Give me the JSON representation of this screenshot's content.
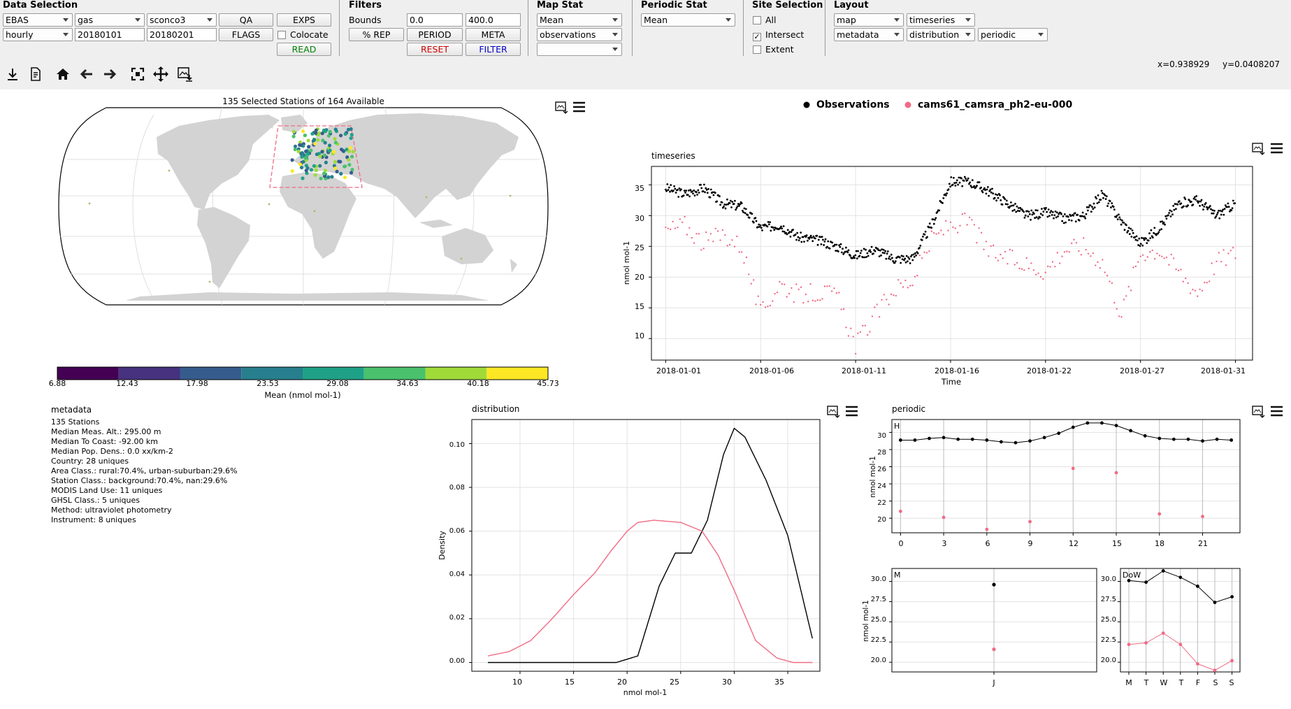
{
  "toolbar": {
    "data_selection": {
      "title": "Data Selection",
      "network": "EBAS",
      "species_group": "gas",
      "species": "sconco3",
      "resolution": "hourly",
      "start_date": "20180101",
      "end_date": "20180201",
      "qa_label": "QA",
      "flags_label": "FLAGS",
      "exps_label": "EXPS",
      "colocate_label": "Colocate",
      "colocate_checked": false,
      "read_label": "READ",
      "read_color": "#008000"
    },
    "filters": {
      "title": "Filters",
      "bounds_label": "Bounds",
      "bounds_min": "0.0",
      "bounds_max": "400.0",
      "rep_label": "% REP",
      "period_label": "PERIOD",
      "meta_label": "META",
      "reset_label": "RESET",
      "reset_color": "#d00000",
      "filter_label": "FILTER",
      "filter_color": "#0000c8"
    },
    "map_stat": {
      "title": "Map Stat",
      "stat": "Mean",
      "dataset": "observations",
      "extra": ""
    },
    "periodic_stat": {
      "title": "Periodic Stat",
      "stat": "Mean"
    },
    "site_selection": {
      "title": "Site Selection",
      "all_label": "All",
      "all_checked": false,
      "intersect_label": "Intersect",
      "intersect_checked": true,
      "extent_label": "Extent",
      "extent_checked": false
    },
    "layout": {
      "title": "Layout",
      "slot1": "map",
      "slot2": "timeseries",
      "slot3": "metadata",
      "slot4": "distribution",
      "slot5": "periodic"
    },
    "nav_icons": [
      "download-icon",
      "report-icon",
      "home-icon",
      "back-arrow-icon",
      "forward-arrow-icon",
      "zoom-icon",
      "pan-icon",
      "save-figure-icon"
    ],
    "coords": {
      "x": "x=0.938929",
      "y": "y=0.0408207"
    }
  },
  "map": {
    "title": "135 Selected Stations of 164 Available",
    "colorbar_ticks": [
      "6.88",
      "12.43",
      "17.98",
      "23.53",
      "29.08",
      "34.63",
      "40.18",
      "45.73"
    ],
    "colorbar_colors": [
      "#440154",
      "#46327e",
      "#365c8d",
      "#277f8e",
      "#1fa187",
      "#4ac16d",
      "#a0da39",
      "#fde725"
    ],
    "colorbar_label": "Mean  (nmol mol-1)",
    "icons": [
      "save-image-icon",
      "menu-icon"
    ]
  },
  "legend": {
    "observations": "Observations",
    "observations_color": "#000000",
    "experiment": "cams61_camsra_ph2-eu-000",
    "experiment_color": "#f06b85"
  },
  "timeseries": {
    "title": "timeseries",
    "ylabel": "nmol mol-1",
    "xlabel": "Time",
    "yticks": [
      "10",
      "15",
      "20",
      "25",
      "30",
      "35"
    ],
    "xticks": [
      "2018-01-01",
      "2018-01-06",
      "2018-01-11",
      "2018-01-16",
      "2018-01-22",
      "2018-01-27",
      "2018-01-31"
    ]
  },
  "metadata": {
    "title": "metadata",
    "lines": [
      "135 Stations",
      "Median Meas. Alt.: 295.00 m",
      "Median To Coast: -92.00 km",
      "Median Pop. Dens.: 0.0 xx/km-2",
      "Country: 28 uniques",
      "Area Class.: rural:70.4%, urban-suburban:29.6%",
      "Station Class.: background:70.4%, nan:29.6%",
      "MODIS Land Use: 11 uniques",
      "GHSL Class.: 5 uniques",
      "Method: ultraviolet photometry",
      "Instrument: 8 uniques"
    ]
  },
  "distribution": {
    "title": "distribution",
    "ylabel": "Density",
    "xlabel": "nmol mol-1",
    "yticks": [
      "0.00",
      "0.02",
      "0.04",
      "0.06",
      "0.08",
      "0.10"
    ],
    "xticks": [
      "10",
      "15",
      "20",
      "25",
      "30",
      "35"
    ]
  },
  "periodic": {
    "title": "periodic",
    "ylabel": "nmol mol-1",
    "hour_label": "H",
    "month_label": "M",
    "dow_label": "DoW"
  },
  "chart_data": [
    {
      "type": "line",
      "title": "timeseries",
      "xlabel": "Time",
      "ylabel": "nmol mol-1",
      "x_range": [
        "2018-01-01",
        "2018-01-31"
      ],
      "ylim": [
        6.5,
        38
      ],
      "grid": true,
      "x": [
        1,
        2,
        3,
        4,
        5,
        6,
        7,
        8,
        9,
        10,
        11,
        12,
        13,
        14,
        15,
        16,
        17,
        18,
        19,
        20,
        21,
        22,
        23,
        24,
        25,
        26,
        27,
        28,
        29,
        30,
        31
      ],
      "series": [
        {
          "name": "Observations",
          "values": [
            34.5,
            33.5,
            34.5,
            32.0,
            31.5,
            28.0,
            28.5,
            26.5,
            26.0,
            25.0,
            23.5,
            24.5,
            23.0,
            23.0,
            28.5,
            35.5,
            35.5,
            34.0,
            32.0,
            30.0,
            30.5,
            29.5,
            30.0,
            33.5,
            29.0,
            25.5,
            28.0,
            32.0,
            32.5,
            30.0,
            32.0
          ]
        },
        {
          "name": "cams61_camsra_ph2-eu-000",
          "values": [
            27.5,
            28.5,
            25.5,
            27.0,
            25.0,
            14.0,
            19.0,
            17.0,
            17.5,
            17.0,
            9.0,
            13.5,
            18.0,
            19.5,
            26.0,
            28.5,
            29.0,
            24.0,
            23.0,
            22.0,
            21.0,
            24.5,
            25.0,
            22.5,
            14.0,
            24.0,
            24.5,
            21.0,
            17.5,
            22.5,
            24.0
          ]
        }
      ]
    },
    {
      "type": "line",
      "title": "distribution",
      "xlabel": "nmol mol-1",
      "ylabel": "Density",
      "xlim": [
        5.5,
        38
      ],
      "ylim": [
        -0.004,
        0.111
      ],
      "grid": true,
      "series": [
        {
          "name": "Observations",
          "x": [
            7,
            19,
            21,
            23,
            24.5,
            26,
            27.5,
            29,
            30,
            31,
            33,
            35,
            37.3
          ],
          "values": [
            0,
            0,
            0.003,
            0.035,
            0.05,
            0.05,
            0.065,
            0.095,
            0.107,
            0.103,
            0.083,
            0.058,
            0.011
          ]
        },
        {
          "name": "cams61_camsra_ph2-eu-000",
          "x": [
            7,
            9,
            11,
            13,
            15,
            17,
            18.5,
            20,
            21,
            22.5,
            25,
            27,
            28.5,
            30,
            32,
            34,
            35.5,
            37.3
          ],
          "values": [
            0.003,
            0.005,
            0.01,
            0.02,
            0.031,
            0.041,
            0.051,
            0.06,
            0.064,
            0.065,
            0.064,
            0.06,
            0.049,
            0.033,
            0.01,
            0.002,
            0,
            0
          ]
        }
      ]
    },
    {
      "type": "line",
      "title": "H",
      "ylabel": "nmol mol-1",
      "xticks": [
        "0",
        "3",
        "6",
        "9",
        "12",
        "15",
        "18",
        "21"
      ],
      "yticks": [
        "20",
        "22",
        "24",
        "26",
        "28",
        "30"
      ],
      "xlim": [
        -0.6,
        23.6
      ],
      "ylim": [
        18.3,
        31.5
      ],
      "series": [
        {
          "name": "Observations",
          "x": [
            0,
            1,
            2,
            3,
            4,
            5,
            6,
            7,
            8,
            9,
            10,
            11,
            12,
            13,
            14,
            15,
            16,
            17,
            18,
            19,
            20,
            21,
            22,
            23
          ],
          "values": [
            29.1,
            29.1,
            29.3,
            29.4,
            29.2,
            29.2,
            29.1,
            28.9,
            28.8,
            29.0,
            29.4,
            29.9,
            30.6,
            31.1,
            31.1,
            30.8,
            30.2,
            29.6,
            29.3,
            29.2,
            29.2,
            29.0,
            29.2,
            29.1
          ]
        },
        {
          "name": "cams61_camsra_ph2-eu-000",
          "x": [
            0,
            3,
            6,
            9,
            12,
            15,
            18,
            21
          ],
          "values": [
            20.8,
            20.1,
            18.7,
            19.6,
            25.8,
            25.3,
            20.5,
            20.2
          ]
        }
      ]
    },
    {
      "type": "scatter",
      "title": "M",
      "ylabel": "nmol mol-1",
      "categories": [
        "J"
      ],
      "yticks": [
        "20.0",
        "22.5",
        "25.0",
        "27.5",
        "30.0"
      ],
      "ylim": [
        18.8,
        31.6
      ],
      "series": [
        {
          "name": "Observations",
          "values": [
            29.6
          ]
        },
        {
          "name": "cams61_camsra_ph2-eu-000",
          "values": [
            21.6
          ]
        }
      ]
    },
    {
      "type": "line",
      "title": "DoW",
      "categories": [
        "M",
        "T",
        "W",
        "T",
        "F",
        "S",
        "S"
      ],
      "yticks": [
        "20.0",
        "22.5",
        "25.0",
        "27.5",
        "30.0"
      ],
      "ylim": [
        18.8,
        31.6
      ],
      "series": [
        {
          "name": "Observations",
          "values": [
            30.1,
            29.9,
            31.3,
            30.5,
            29.4,
            27.4,
            28.1
          ]
        },
        {
          "name": "cams61_camsra_ph2-eu-000",
          "values": [
            22.2,
            22.4,
            23.6,
            22.2,
            19.8,
            19.0,
            20.2
          ]
        }
      ]
    }
  ]
}
